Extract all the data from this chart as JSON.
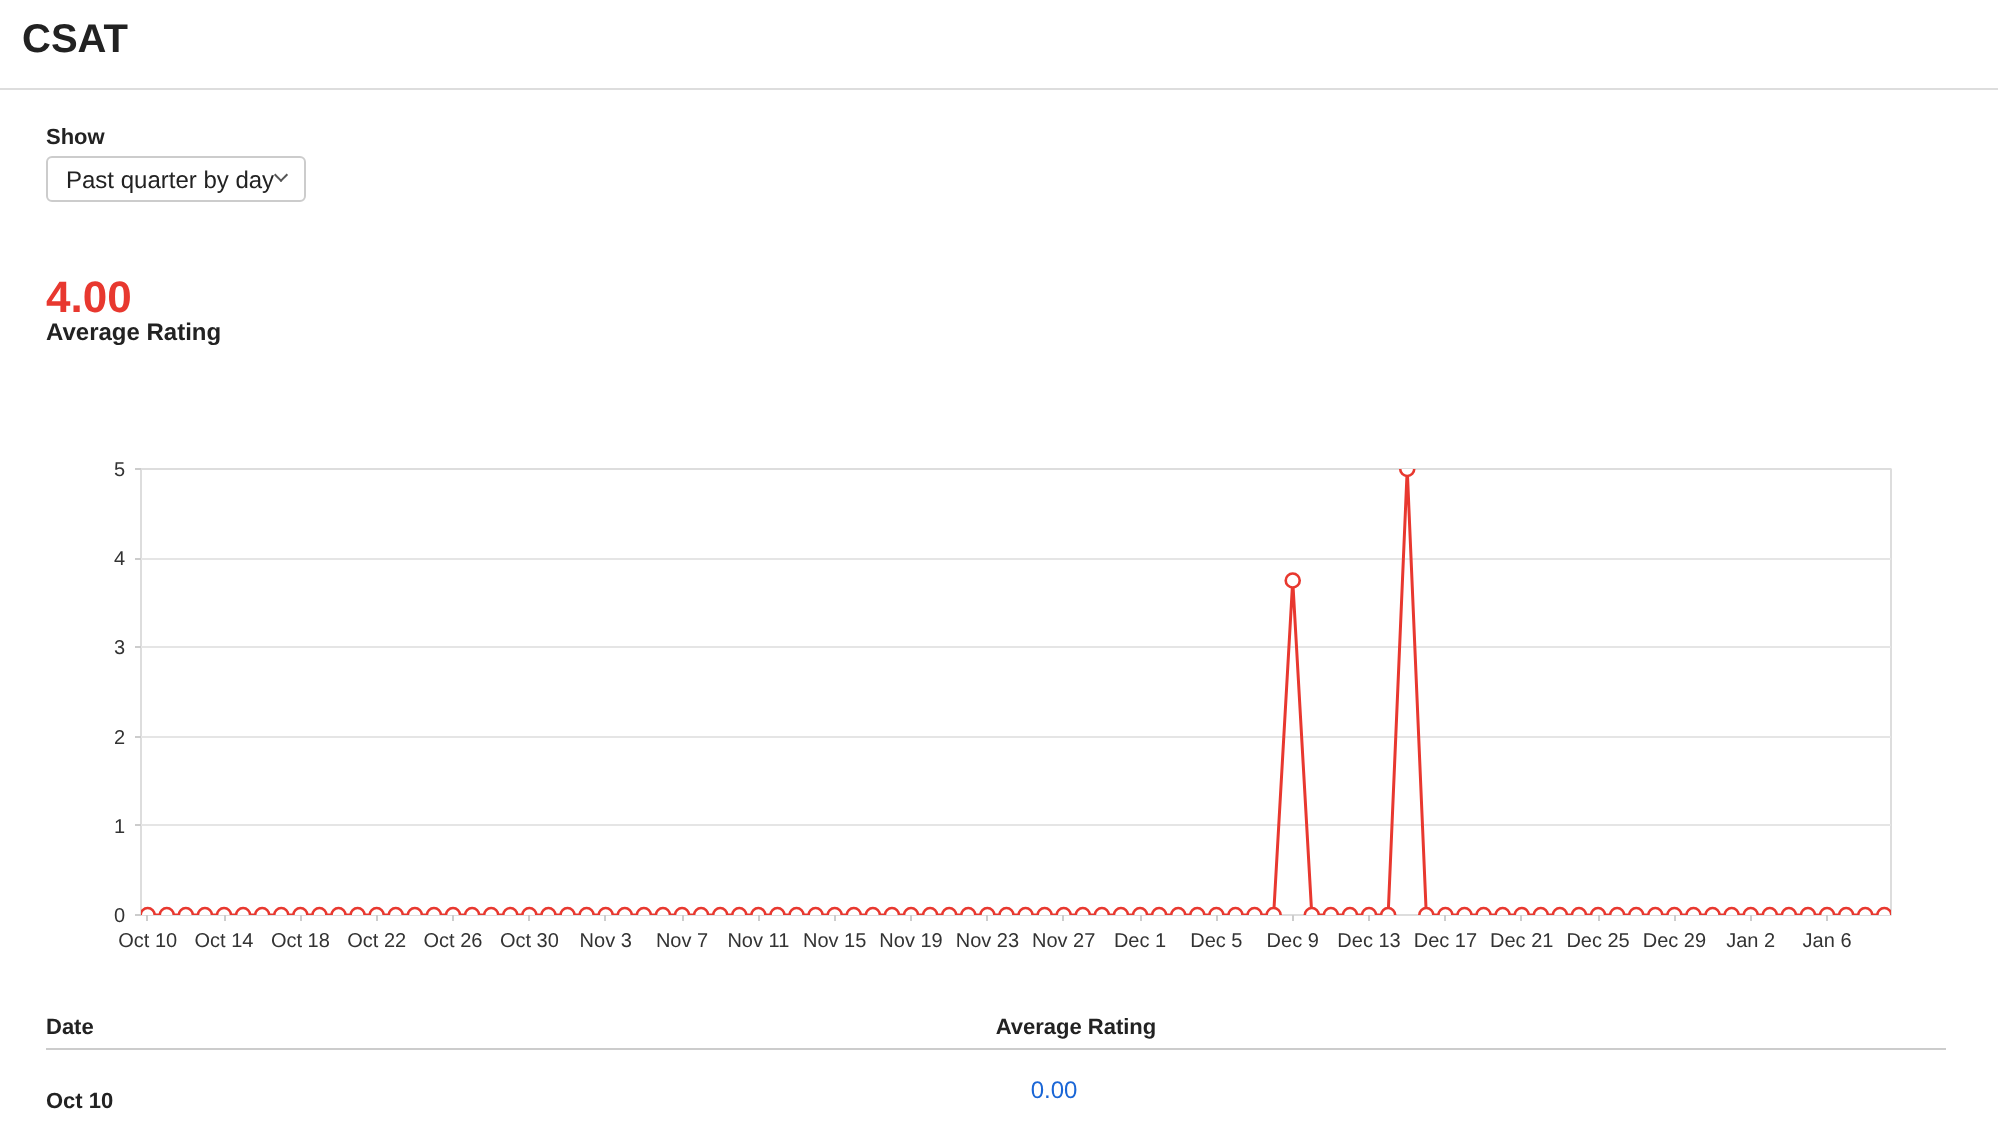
{
  "chart_data": {
    "type": "line",
    "title": "CSAT",
    "annotations": [
      "Show",
      "Past quarter by day",
      "4.00",
      "Average Rating",
      "Date",
      "Average Rating",
      "Oct 10",
      "0.00"
    ],
    "categories": [
      "Oct 10",
      null,
      null,
      null,
      "Oct 14",
      null,
      null,
      null,
      "Oct 18",
      null,
      null,
      null,
      "Oct 22",
      null,
      null,
      null,
      "Oct 26",
      null,
      null,
      null,
      "Oct 30",
      null,
      null,
      null,
      "Nov 3",
      null,
      null,
      null,
      "Nov 7",
      null,
      null,
      null,
      "Nov 11",
      null,
      null,
      null,
      "Nov 15",
      null,
      null,
      null,
      "Nov 19",
      null,
      null,
      null,
      "Nov 23",
      null,
      null,
      null,
      "Nov 27",
      null,
      null,
      null,
      "Dec 1",
      null,
      null,
      null,
      "Dec 5",
      null,
      null,
      null,
      "Dec 9",
      null,
      null,
      null,
      "Dec 13",
      null,
      null,
      null,
      "Dec 17",
      null,
      null,
      null,
      "Dec 21",
      null,
      null,
      null,
      "Dec 25",
      null,
      null,
      null,
      "Dec 29",
      null,
      null,
      null,
      "Jan 2",
      null,
      null,
      null,
      "Jan 6",
      null,
      null,
      null
    ],
    "values": [
      0,
      0,
      0,
      0,
      0,
      0,
      0,
      0,
      0,
      0,
      0,
      0,
      0,
      0,
      0,
      0,
      0,
      0,
      0,
      0,
      0,
      0,
      0,
      0,
      0,
      0,
      0,
      0,
      0,
      0,
      0,
      0,
      0,
      0,
      0,
      0,
      0,
      0,
      0,
      0,
      0,
      0,
      0,
      0,
      0,
      0,
      0,
      0,
      0,
      0,
      0,
      0,
      0,
      0,
      0,
      0,
      0,
      0,
      0,
      0,
      3.75,
      0,
      0,
      0,
      0,
      0,
      5,
      0,
      0,
      0,
      0,
      0,
      0,
      0,
      0,
      0,
      0,
      0,
      0,
      0,
      0,
      0,
      0,
      0,
      0,
      0,
      0,
      0,
      0,
      0,
      0,
      0
    ],
    "color": "#e8382f",
    "ylim": [
      0,
      5
    ],
    "yticks": [
      0,
      1,
      2,
      3,
      4,
      5
    ],
    "grid": "y",
    "marker": "circle",
    "line_style": "solid"
  }
}
